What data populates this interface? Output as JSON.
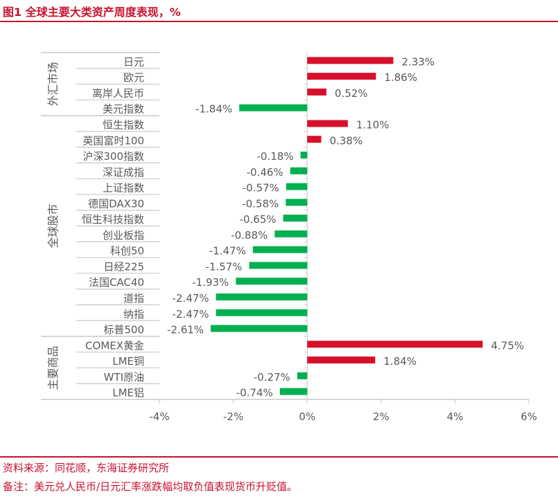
{
  "title": "图1  全球主要大类资产周度表现，%",
  "footer": {
    "source": "资料来源：同花顺，东海证券研究所",
    "note": "备注：美元兑人民币/日元汇率涨跌幅均取负值表现货币升贬值。"
  },
  "chart_data": {
    "type": "bar",
    "orientation": "horizontal",
    "title": "",
    "xlabel": "",
    "ylabel": "",
    "xlim": [
      -4,
      6
    ],
    "xticks": [
      "-4%",
      "-2%",
      "0%",
      "2%",
      "4%",
      "6%"
    ],
    "xtick_values": [
      -4,
      -2,
      0,
      2,
      4,
      6
    ],
    "groups": [
      {
        "name": "外汇市场",
        "categories": [
          "日元",
          "欧元",
          "离岸人民币",
          "美元指数"
        ],
        "values": [
          2.33,
          1.86,
          0.52,
          -1.84
        ]
      },
      {
        "name": "全球股市",
        "categories": [
          "恒生指数",
          "英国富时100",
          "沪深300指数",
          "深证成指",
          "上证指数",
          "德国DAX30",
          "恒生科技指数",
          "创业板指",
          "科创50",
          "日经225",
          "法国CAC40",
          "道指",
          "纳指",
          "标普500"
        ],
        "values": [
          1.1,
          0.38,
          -0.18,
          -0.46,
          -0.57,
          -0.58,
          -0.65,
          -0.88,
          -1.47,
          -1.57,
          -1.93,
          -2.47,
          -2.47,
          -2.61
        ]
      },
      {
        "name": "主要商品",
        "categories": [
          "COMEX黄金",
          "LME铜",
          "WTI原油",
          "LME铝"
        ],
        "values": [
          4.75,
          1.84,
          -0.27,
          -0.74
        ]
      }
    ],
    "value_format": "%",
    "colors": {
      "positive": "#d7102a",
      "negative": "#00b050",
      "grid": "#c8c8c8",
      "text": "#595959"
    },
    "grid": false,
    "legend": "none"
  }
}
